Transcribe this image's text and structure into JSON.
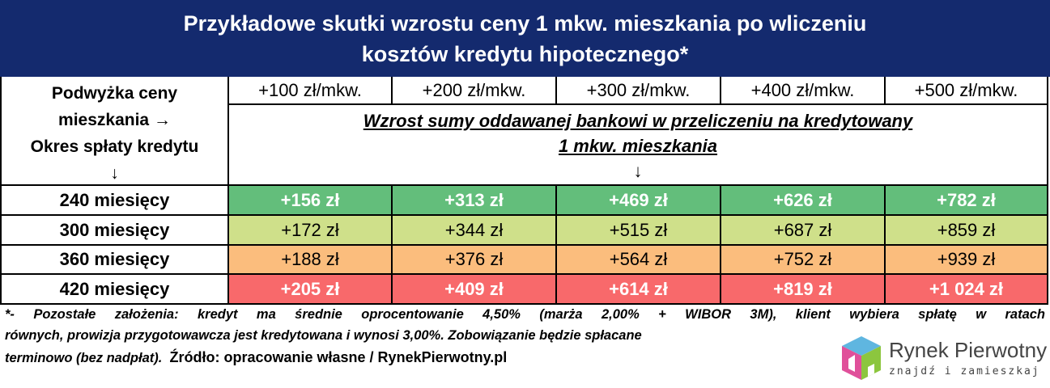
{
  "header": {
    "title_lines": [
      "Przykładowe skutki wzrostu ceny 1 mkw. mieszkania po wliczeniu",
      "kosztów kredytu hipotecznego*"
    ]
  },
  "table": {
    "corner_lines": [
      "Podwyżka ceny",
      "mieszkania →",
      "Okres spłaty kredytu",
      "↓"
    ],
    "columns": [
      "+100 zł/mkw.",
      "+200 zł/mkw.",
      "+300 zł/mkw.",
      "+400 zł/mkw.",
      "+500 zł/mkw."
    ],
    "subheader_lines": [
      "Wzrost sumy oddawanej bankowi w przeliczeniu na kredytowany",
      "1 mkw. mieszkania",
      "↓"
    ],
    "rows": [
      {
        "label": "240 miesięcy",
        "cells": [
          "+156 zł",
          "+313 zł",
          "+469 zł",
          "+626 zł",
          "+782 zł"
        ],
        "color": "#63be7b",
        "style": "bold-white"
      },
      {
        "label": "300 miesięcy",
        "cells": [
          "+172 zł",
          "+344 zł",
          "+515 zł",
          "+687 zł",
          "+859 zł"
        ],
        "color": "#cfe08a",
        "style": "normal"
      },
      {
        "label": "360 miesięcy",
        "cells": [
          "+188 zł",
          "+376 zł",
          "+564 zł",
          "+752 zł",
          "+939 zł"
        ],
        "color": "#fbbd7d",
        "style": "normal"
      },
      {
        "label": "420 miesięcy",
        "cells": [
          "+205 zł",
          "+409 zł",
          "+614 zł",
          "+819 zł",
          "+1 024 zł"
        ],
        "color": "#f8696b",
        "style": "bold-white"
      }
    ]
  },
  "footnote": {
    "lines": [
      "*- Pozostałe założenia: kredyt ma średnie oprocentowanie 4,50% (marża 2,00% + WIBOR 3M), klient wybiera spłatę w ratach",
      "równych, prowizja przygotowawcza jest kredytowana i wynosi 3,00%. Zobowiązanie będzie spłacane",
      "terminowo (bez nadpłat)."
    ],
    "source": "Źródło: opracowanie własne / RynekPierwotny.pl"
  },
  "logo": {
    "name": "Rynek Pierwotny",
    "tagline": "znajdź i zamieszkaj"
  }
}
